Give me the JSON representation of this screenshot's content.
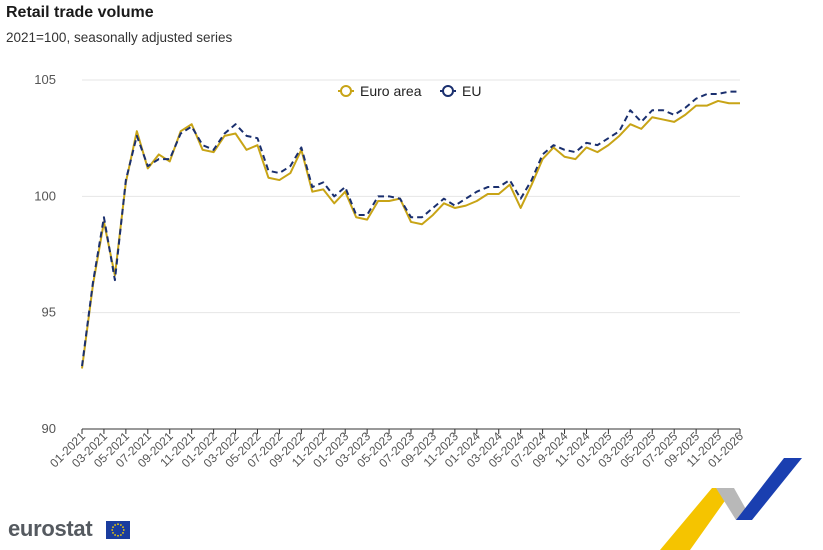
{
  "header": {
    "title": "Retail trade volume",
    "subtitle": "2021=100, seasonally adjusted series"
  },
  "logo": {
    "text": "eurostat"
  },
  "colors": {
    "euro_area": "#c8a416",
    "eu": "#1a2f6e",
    "grid": "#e6e6e6",
    "axis": "#333333"
  },
  "chart_data": {
    "type": "line",
    "title": "Retail trade volume",
    "subtitle": "2021=100, seasonally adjusted series",
    "xlabel": "",
    "ylabel": "",
    "ylim": [
      90,
      105
    ],
    "yticks": [
      "90",
      "95",
      "100",
      "105"
    ],
    "grid": true,
    "legend_position": "top-center",
    "x": [
      "01-2021",
      "02-2021",
      "03-2021",
      "04-2021",
      "05-2021",
      "06-2021",
      "07-2021",
      "08-2021",
      "09-2021",
      "10-2021",
      "11-2021",
      "12-2021",
      "01-2022",
      "02-2022",
      "03-2022",
      "04-2022",
      "05-2022",
      "06-2022",
      "07-2022",
      "08-2022",
      "09-2022",
      "10-2022",
      "11-2022",
      "12-2022",
      "01-2023",
      "02-2023",
      "03-2023",
      "04-2023",
      "05-2023",
      "06-2023",
      "07-2023",
      "08-2023",
      "09-2023",
      "10-2023",
      "11-2023",
      "12-2023",
      "01-2024",
      "02-2024",
      "03-2024",
      "04-2024",
      "05-2024",
      "06-2024",
      "07-2024",
      "08-2024",
      "09-2024",
      "10-2024",
      "11-2024",
      "12-2024",
      "01-2025",
      "02-2025",
      "03-2025",
      "04-2025",
      "05-2025",
      "06-2025",
      "07-2025",
      "08-2025",
      "09-2025",
      "10-2025",
      "11-2025",
      "12-2025",
      "01-2026"
    ],
    "x_tick_labels": [
      "01-2021",
      "03-2021",
      "05-2021",
      "07-2021",
      "09-2021",
      "11-2021",
      "01-2022",
      "03-2022",
      "05-2022",
      "07-2022",
      "09-2022",
      "11-2022",
      "01-2023",
      "03-2023",
      "05-2023",
      "07-2023",
      "09-2023",
      "11-2023",
      "01-2024",
      "03-2024",
      "05-2024",
      "07-2024",
      "09-2024",
      "11-2024",
      "01-2025",
      "03-2025",
      "05-2025",
      "07-2025",
      "09-2025",
      "11-2025",
      "01-2026"
    ],
    "series": [
      {
        "name": "Euro area",
        "style": "solid",
        "values": [
          92.6,
          96.2,
          98.9,
          96.6,
          100.6,
          102.8,
          101.2,
          101.8,
          101.5,
          102.8,
          103.1,
          102.0,
          101.9,
          102.6,
          102.7,
          102.0,
          102.2,
          100.8,
          100.7,
          101.0,
          102.0,
          100.2,
          100.3,
          99.7,
          100.2,
          99.1,
          99.0,
          99.8,
          99.8,
          99.9,
          98.9,
          98.8,
          99.2,
          99.7,
          99.5,
          99.6,
          99.8,
          100.1,
          100.1,
          100.5,
          99.5,
          100.5,
          101.6,
          102.1,
          101.7,
          101.6,
          102.1,
          101.9,
          102.2,
          102.6,
          103.1,
          102.9,
          103.4,
          103.3,
          103.2,
          103.5,
          103.9,
          103.9,
          104.1,
          104.0,
          104.0
        ]
      },
      {
        "name": "EU",
        "style": "dashed",
        "values": [
          92.7,
          96.3,
          99.1,
          96.4,
          100.7,
          102.6,
          101.3,
          101.6,
          101.6,
          102.7,
          103.0,
          102.2,
          102.0,
          102.7,
          103.1,
          102.6,
          102.5,
          101.1,
          101.0,
          101.3,
          102.1,
          100.4,
          100.6,
          100.0,
          100.4,
          99.2,
          99.2,
          100.0,
          100.0,
          99.9,
          99.1,
          99.1,
          99.5,
          99.9,
          99.6,
          99.9,
          100.2,
          100.4,
          100.4,
          100.7,
          99.9,
          100.7,
          101.8,
          102.2,
          102.0,
          101.9,
          102.3,
          102.2,
          102.5,
          102.8,
          103.7,
          103.2,
          103.7,
          103.7,
          103.5,
          103.8,
          104.2,
          104.4,
          104.4,
          104.5,
          104.5
        ]
      }
    ]
  }
}
